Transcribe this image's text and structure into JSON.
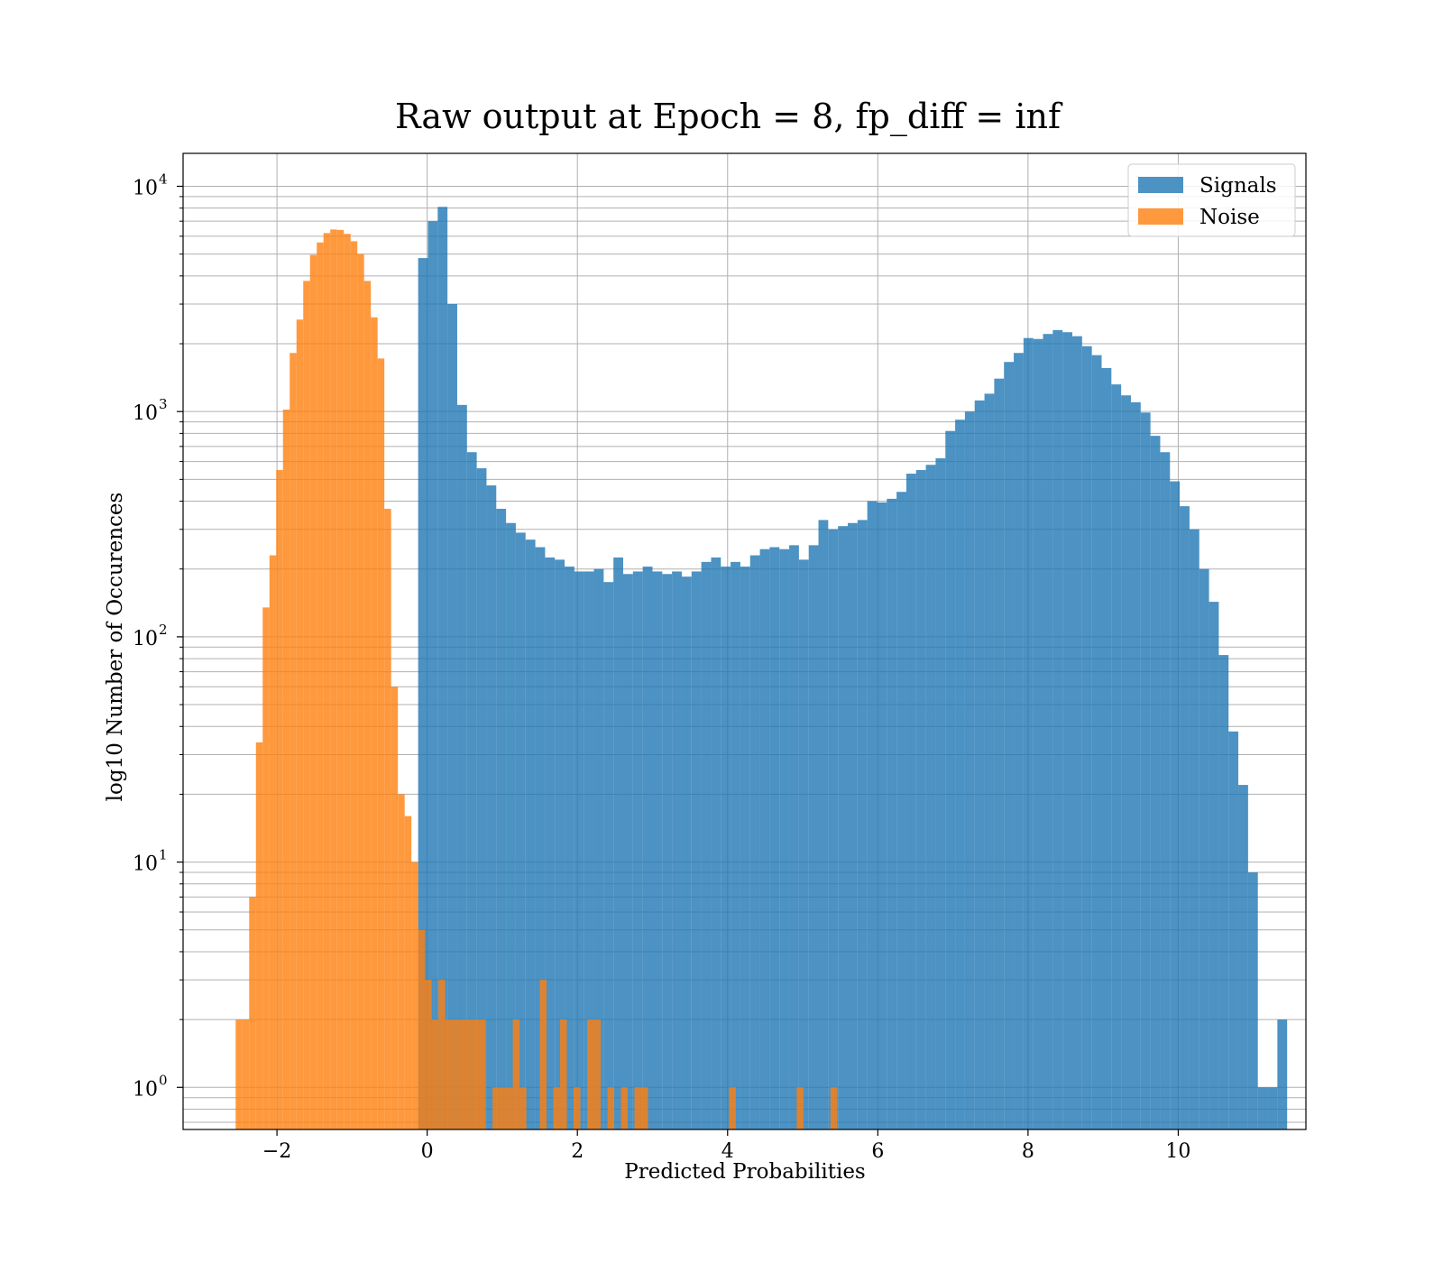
{
  "chart_data": {
    "type": "bar",
    "title": "Raw output at Epoch = 8, fp_diff = inf",
    "xlabel": "Predicted Probabilities",
    "ylabel": "log10 Number of Occurences",
    "xlim": [
      -3.25,
      11.7
    ],
    "ylim": [
      0.65,
      14000
    ],
    "yscale": "log",
    "grid": true,
    "legend_position": "top-right",
    "x_ticks": [
      -2,
      0,
      2,
      4,
      6,
      8,
      10
    ],
    "x_tick_labels": [
      "−2",
      "0",
      "2",
      "4",
      "6",
      "8",
      "10"
    ],
    "y_ticks": [
      {
        "base": "10",
        "exp": "0",
        "value": 1
      },
      {
        "base": "10",
        "exp": "1",
        "value": 10
      },
      {
        "base": "10",
        "exp": "2",
        "value": 100
      },
      {
        "base": "10",
        "exp": "3",
        "value": 1000
      },
      {
        "base": "10",
        "exp": "4",
        "value": 10000
      }
    ],
    "series": [
      {
        "name": "Signals",
        "color": "#1f77b4",
        "alpha": 0.8,
        "x_start": -2.2,
        "bin_width": 0.13,
        "values": [
          0,
          0,
          0,
          0,
          0,
          0,
          0,
          0,
          0,
          0,
          0,
          0,
          0,
          0,
          0,
          0,
          4800,
          7000,
          8100,
          3000,
          1070,
          660,
          560,
          470,
          370,
          320,
          290,
          270,
          250,
          225,
          220,
          205,
          195,
          195,
          200,
          175,
          225,
          190,
          195,
          205,
          195,
          190,
          195,
          185,
          195,
          215,
          225,
          205,
          215,
          205,
          230,
          245,
          250,
          245,
          255,
          220,
          255,
          330,
          300,
          310,
          320,
          330,
          400,
          395,
          410,
          440,
          530,
          550,
          580,
          620,
          820,
          920,
          1000,
          1120,
          1200,
          1400,
          1660,
          1820,
          2120,
          2100,
          2210,
          2300,
          2250,
          2160,
          1950,
          1780,
          1560,
          1320,
          1180,
          1100,
          990,
          780,
          660,
          490,
          380,
          300,
          200,
          143,
          83,
          38,
          22,
          9,
          1,
          1,
          2
        ]
      },
      {
        "name": "Noise",
        "color": "#ff7f0e",
        "alpha": 0.8,
        "x_start": -2.55,
        "bin_width": 0.09,
        "values": [
          2,
          2,
          7,
          34,
          135,
          230,
          550,
          1020,
          1820,
          2560,
          3800,
          4960,
          5630,
          6200,
          6430,
          6400,
          6150,
          5700,
          5000,
          3800,
          2620,
          1720,
          370,
          60,
          20,
          16,
          10,
          5,
          3,
          2,
          3,
          2,
          2,
          2,
          2,
          2,
          2,
          0,
          1,
          1,
          1,
          2,
          1,
          0,
          0,
          3,
          0,
          1,
          2,
          0,
          1,
          0,
          2,
          2,
          0,
          1,
          0,
          1,
          0,
          1,
          1,
          0,
          0,
          0,
          0,
          0,
          0,
          0,
          0,
          0,
          0,
          0,
          0,
          1,
          0,
          0,
          0,
          0,
          0,
          0,
          0,
          0,
          0,
          1,
          0,
          0,
          0,
          0,
          1
        ]
      }
    ]
  }
}
